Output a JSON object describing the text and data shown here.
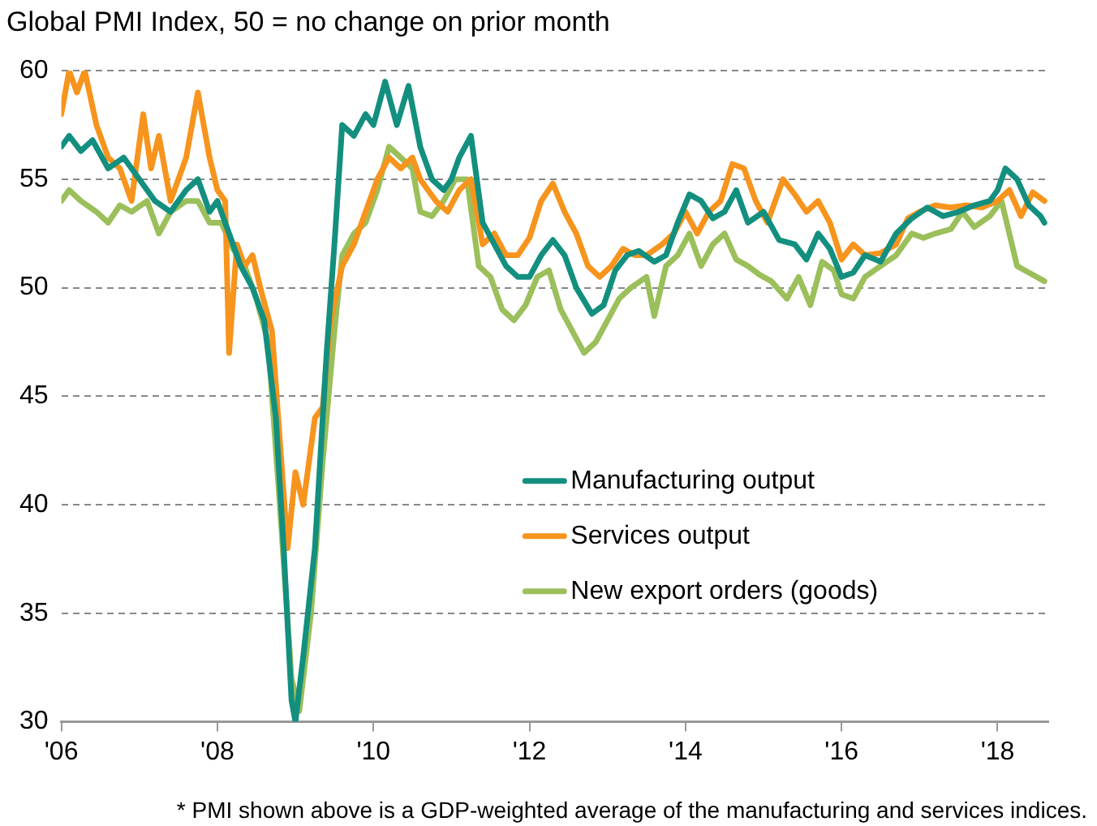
{
  "chart_data": {
    "type": "line",
    "title": "Global PMI Index, 50 = no change on prior month",
    "annotations": [
      "* PMI shown above is a GDP-weighted average of the manufacturing and services indices."
    ],
    "xlim": [
      2006,
      2018.65
    ],
    "xticks": [
      {
        "value": 2006,
        "label": "'06"
      },
      {
        "value": 2008,
        "label": "'08"
      },
      {
        "value": 2010,
        "label": "'10"
      },
      {
        "value": 2012,
        "label": "'12"
      },
      {
        "value": 2014,
        "label": "'14"
      },
      {
        "value": 2016,
        "label": "'16"
      },
      {
        "value": 2018,
        "label": "'18"
      }
    ],
    "ylim": [
      30,
      60
    ],
    "yticks": [
      30,
      35,
      40,
      45,
      50,
      55,
      60
    ],
    "grid": "y",
    "legend": "right",
    "marker": "none",
    "line_style": "solid",
    "series": [
      {
        "name": "Manufacturing output",
        "color": "#138f7f",
        "x": [
          2006.0,
          2006.1,
          2006.25,
          2006.4,
          2006.6,
          2006.8,
          2007.0,
          2007.2,
          2007.4,
          2007.6,
          2007.75,
          2007.9,
          2008.0,
          2008.15,
          2008.3,
          2008.45,
          2008.6,
          2008.75,
          2008.85,
          2008.95,
          2009.0,
          2009.1,
          2009.25,
          2009.4,
          2009.5,
          2009.6,
          2009.75,
          2009.9,
          2010.0,
          2010.15,
          2010.3,
          2010.45,
          2010.6,
          2010.75,
          2010.9,
          2011.0,
          2011.1,
          2011.25,
          2011.4,
          2011.55,
          2011.7,
          2011.85,
          2012.0,
          2012.15,
          2012.3,
          2012.45,
          2012.6,
          2012.8,
          2012.95,
          2013.1,
          2013.25,
          2013.4,
          2013.6,
          2013.75,
          2013.9,
          2014.05,
          2014.2,
          2014.35,
          2014.5,
          2014.65,
          2014.8,
          2015.0,
          2015.2,
          2015.4,
          2015.55,
          2015.7,
          2015.85,
          2016.0,
          2016.15,
          2016.3,
          2016.5,
          2016.7,
          2016.9,
          2017.1,
          2017.3,
          2017.5,
          2017.7,
          2017.9,
          2018.0,
          2018.1,
          2018.25,
          2018.4,
          2018.55,
          2018.6
        ],
        "values": [
          56.5,
          57,
          56.3,
          56.8,
          55.5,
          56,
          55,
          54,
          53.5,
          54.5,
          55,
          53.5,
          54,
          52.5,
          51,
          50,
          48.5,
          44,
          38,
          31,
          30,
          33,
          38,
          47,
          52,
          57.5,
          57,
          58,
          57.5,
          59.5,
          57.5,
          59.3,
          56.5,
          55,
          54.5,
          55,
          56,
          57,
          53,
          52,
          51,
          50.5,
          50.5,
          51.5,
          52.2,
          51.5,
          50,
          48.8,
          49.2,
          50.8,
          51.5,
          51.7,
          51.2,
          51.5,
          53,
          54.3,
          54,
          53.2,
          53.5,
          54.5,
          53,
          53.5,
          52.2,
          52,
          51.3,
          52.5,
          51.8,
          50.5,
          50.7,
          51.5,
          51.2,
          52.5,
          53.2,
          53.7,
          53.3,
          53.5,
          53.8,
          54,
          54.5,
          55.5,
          55,
          53.8,
          53.3,
          53
        ]
      },
      {
        "name": "Services output",
        "color": "#f7941d",
        "x": [
          2006.0,
          2006.1,
          2006.2,
          2006.3,
          2006.45,
          2006.6,
          2006.75,
          2006.9,
          2007.05,
          2007.15,
          2007.25,
          2007.4,
          2007.6,
          2007.75,
          2007.9,
          2008.0,
          2008.1,
          2008.15,
          2008.25,
          2008.35,
          2008.45,
          2008.55,
          2008.7,
          2008.8,
          2008.9,
          2009.0,
          2009.1,
          2009.25,
          2009.35,
          2009.45,
          2009.6,
          2009.75,
          2009.9,
          2010.05,
          2010.2,
          2010.35,
          2010.5,
          2010.6,
          2010.8,
          2010.95,
          2011.1,
          2011.25,
          2011.4,
          2011.55,
          2011.7,
          2011.85,
          2012.0,
          2012.15,
          2012.3,
          2012.45,
          2012.6,
          2012.75,
          2012.9,
          2013.05,
          2013.2,
          2013.35,
          2013.5,
          2013.7,
          2013.85,
          2014.0,
          2014.15,
          2014.3,
          2014.45,
          2014.6,
          2014.75,
          2014.9,
          2015.05,
          2015.25,
          2015.4,
          2015.55,
          2015.7,
          2015.85,
          2016.0,
          2016.15,
          2016.3,
          2016.5,
          2016.7,
          2016.85,
          2017.0,
          2017.2,
          2017.4,
          2017.6,
          2017.8,
          2018.0,
          2018.15,
          2018.3,
          2018.45,
          2018.6
        ],
        "values": [
          58,
          60,
          59,
          60,
          57.5,
          56,
          55.5,
          54,
          58,
          55.5,
          57,
          54,
          56,
          59,
          56,
          54.5,
          54,
          47,
          52,
          51,
          51.5,
          50,
          48,
          43,
          38,
          41.5,
          40,
          44,
          44.5,
          48.5,
          51,
          52,
          53.5,
          55,
          56,
          55.5,
          56,
          55,
          54,
          53.5,
          54.5,
          55,
          52,
          52.5,
          51.5,
          51.5,
          52.3,
          54,
          54.8,
          53.5,
          52.5,
          51,
          50.5,
          51,
          51.8,
          51.5,
          51.5,
          52,
          52.5,
          53.5,
          52.5,
          53.5,
          54,
          55.7,
          55.5,
          54,
          53,
          55,
          54.3,
          53.5,
          54,
          53,
          51.3,
          52,
          51.5,
          51.6,
          52,
          53.2,
          53.5,
          53.8,
          53.7,
          53.8,
          53.7,
          54,
          54.5,
          53.3,
          54.4,
          54
        ]
      },
      {
        "name": "New export orders (goods)",
        "color": "#9bbf5a",
        "x": [
          2006.0,
          2006.1,
          2006.25,
          2006.45,
          2006.6,
          2006.75,
          2006.9,
          2007.1,
          2007.25,
          2007.4,
          2007.6,
          2007.75,
          2007.9,
          2008.05,
          2008.2,
          2008.35,
          2008.5,
          2008.65,
          2008.8,
          2008.95,
          2009.05,
          2009.2,
          2009.35,
          2009.5,
          2009.6,
          2009.75,
          2009.9,
          2010.05,
          2010.2,
          2010.35,
          2010.5,
          2010.6,
          2010.75,
          2010.9,
          2011.05,
          2011.2,
          2011.35,
          2011.5,
          2011.65,
          2011.8,
          2011.95,
          2012.1,
          2012.25,
          2012.4,
          2012.55,
          2012.7,
          2012.85,
          2013.0,
          2013.15,
          2013.3,
          2013.5,
          2013.6,
          2013.75,
          2013.9,
          2014.05,
          2014.2,
          2014.35,
          2014.5,
          2014.65,
          2014.8,
          2014.95,
          2015.1,
          2015.3,
          2015.45,
          2015.6,
          2015.75,
          2015.9,
          2016.0,
          2016.15,
          2016.3,
          2016.5,
          2016.7,
          2016.9,
          2017.05,
          2017.2,
          2017.4,
          2017.55,
          2017.7,
          2017.9,
          2018.05,
          2018.15,
          2018.25,
          2018.4,
          2018.6
        ],
        "values": [
          54,
          54.5,
          54,
          53.5,
          53,
          53.8,
          53.5,
          54,
          52.5,
          53.5,
          54,
          54,
          53,
          53,
          51.8,
          51,
          49.5,
          47.5,
          40,
          32,
          30.5,
          35,
          42,
          48,
          51.5,
          52.5,
          53,
          54.5,
          56.5,
          56,
          55.5,
          53.5,
          53.3,
          54,
          55,
          55,
          51,
          50.5,
          49,
          48.5,
          49.2,
          50.5,
          50.8,
          49,
          48,
          47,
          47.5,
          48.5,
          49.5,
          50,
          50.5,
          48.7,
          51,
          51.5,
          52.5,
          51,
          52,
          52.5,
          51.3,
          51,
          50.6,
          50.3,
          49.5,
          50.5,
          49.2,
          51.2,
          50.8,
          49.7,
          49.5,
          50.5,
          51,
          51.5,
          52.5,
          52.3,
          52.5,
          52.7,
          53.5,
          52.8,
          53.3,
          54,
          52.5,
          51,
          50.7,
          50.3
        ]
      }
    ]
  }
}
